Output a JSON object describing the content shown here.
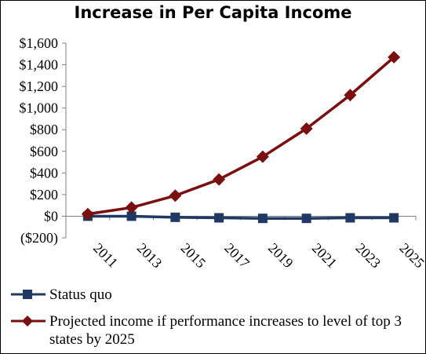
{
  "chart_data": {
    "type": "line",
    "title": "Increase in Per Capita Income",
    "categories": [
      "2011",
      "2013",
      "2015",
      "2017",
      "2019",
      "2021",
      "2023",
      "2025"
    ],
    "yticks": [
      "$1,600",
      "$1,400",
      "$1,200",
      "$1,000",
      "$800",
      "$600",
      "$400",
      "$200",
      "$0",
      "($200)"
    ],
    "ylim": [
      -200,
      1600
    ],
    "grid": false,
    "legend_position": "bottom",
    "series": [
      {
        "name": "Status quo",
        "color": "#1F3864",
        "marker": "square",
        "values": [
          0,
          0,
          -10,
          -15,
          -20,
          -20,
          -15,
          -15
        ]
      },
      {
        "name": "Projected income if performance increases to level of top 3 states by 2025",
        "color": "#7B0F0F",
        "marker": "diamond",
        "values": [
          20,
          80,
          190,
          340,
          550,
          810,
          1120,
          1470
        ]
      }
    ]
  }
}
